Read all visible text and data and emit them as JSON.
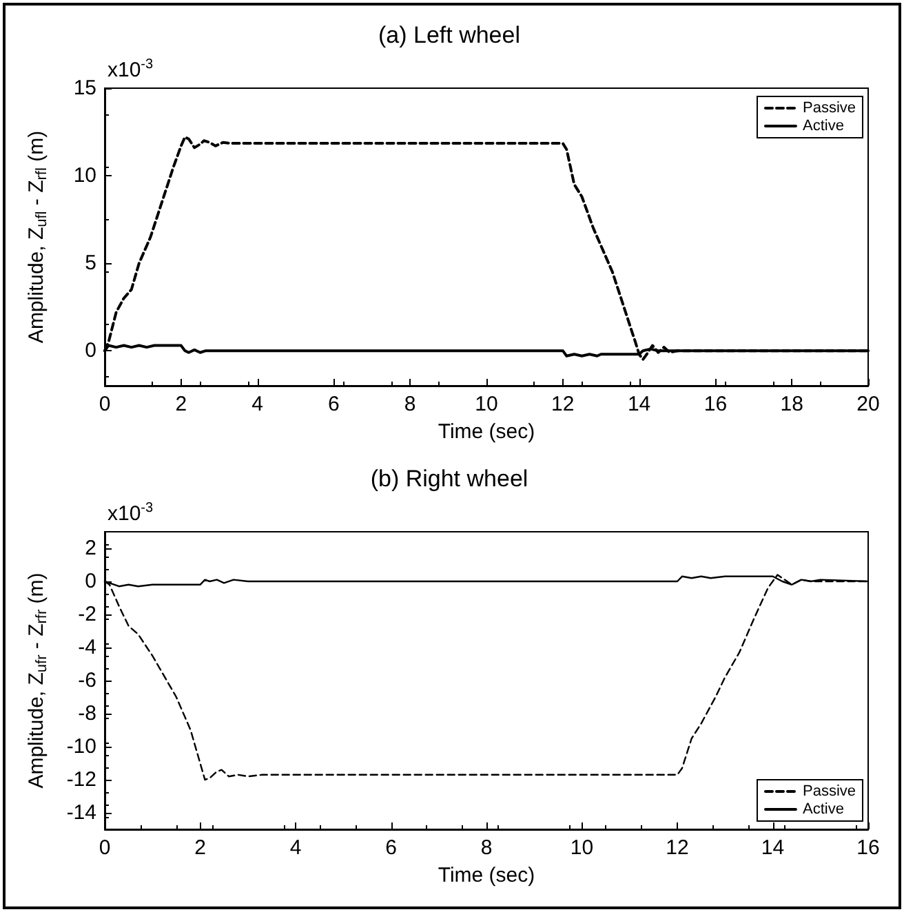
{
  "chart_data": [
    {
      "type": "line",
      "title": "(a) Left wheel",
      "xlabel": "Time (sec)",
      "ylabel": "Amplitude, Z$_{ufl}$ - Z$_{rfl}$ (m)",
      "annotations": [
        "x10$^{-3}$"
      ],
      "xlim": [
        0,
        20
      ],
      "xticks": [
        0,
        2,
        4,
        6,
        8,
        10,
        12,
        14,
        16,
        18,
        20
      ],
      "ylim": [
        -2,
        15
      ],
      "yticks": [
        0,
        5,
        10,
        15
      ],
      "grid": false,
      "legend": "top right",
      "marker": "none",
      "series": [
        {
          "name": "Passive",
          "color": "#000000",
          "line_style": "dashed",
          "x": [
            0,
            0.1,
            0.3,
            0.5,
            0.7,
            0.9,
            1.2,
            1.5,
            1.8,
            2.0,
            2.1,
            2.2,
            2.35,
            2.5,
            2.6,
            2.75,
            2.9,
            3.1,
            3.3,
            12,
            12.1,
            12.3,
            12.5,
            12.8,
            13,
            13.3,
            13.6,
            13.9,
            14.0,
            14.1,
            14.2,
            14.35,
            14.5,
            14.65,
            14.8,
            15,
            20
          ],
          "values": [
            0,
            0.5,
            2.2,
            3,
            3.5,
            5,
            6.5,
            8.5,
            10.5,
            11.7,
            12.2,
            12.1,
            11.6,
            11.8,
            12,
            11.9,
            11.7,
            11.9,
            11.85,
            11.85,
            11.5,
            9.5,
            8.8,
            7,
            6,
            4.5,
            2.5,
            0.5,
            -0.2,
            -0.5,
            -0.2,
            0.3,
            -0.1,
            0.2,
            -0.1,
            0,
            0
          ]
        },
        {
          "name": "Active",
          "color": "#000000",
          "line_style": "solid",
          "x": [
            0,
            0.1,
            0.3,
            0.5,
            0.7,
            0.9,
            1.1,
            1.3,
            2,
            2.1,
            2.2,
            2.35,
            2.5,
            2.65,
            12,
            12.1,
            12.3,
            12.5,
            12.7,
            12.9,
            13,
            14,
            14.1,
            14.3,
            14.5,
            20
          ],
          "values": [
            0,
            0.3,
            0.2,
            0.3,
            0.2,
            0.3,
            0.2,
            0.3,
            0.3,
            0,
            -0.1,
            0.05,
            -0.1,
            0,
            0,
            -0.3,
            -0.2,
            -0.3,
            -0.2,
            -0.3,
            -0.2,
            -0.2,
            0,
            0.1,
            0,
            0
          ]
        }
      ]
    },
    {
      "type": "line",
      "title": "(b) Right wheel",
      "xlabel": "Time (sec)",
      "ylabel": "Amplitude, Z$_{ufr}$ - Z$_{rfr}$ (m)",
      "annotations": [
        "x10$^{-3}$"
      ],
      "xlim": [
        0,
        16
      ],
      "xticks": [
        0,
        2,
        4,
        6,
        8,
        10,
        12,
        14,
        16
      ],
      "ylim": [
        -15,
        3
      ],
      "yticks": [
        -14,
        -12,
        -10,
        -8,
        -6,
        -4,
        -2,
        0,
        2
      ],
      "grid": false,
      "legend": "bottom right",
      "marker": "none",
      "series": [
        {
          "name": "Passive",
          "color": "#000000",
          "line_style": "dashed",
          "x": [
            0,
            0.1,
            0.3,
            0.5,
            0.7,
            1,
            1.2,
            1.5,
            1.8,
            2,
            2.1,
            2.2,
            2.35,
            2.45,
            2.6,
            2.8,
            3,
            3.3,
            4,
            12,
            12.1,
            12.3,
            12.5,
            12.8,
            13,
            13.3,
            13.6,
            13.9,
            14.1,
            14.2,
            14.4,
            14.6,
            14.8,
            15,
            16
          ],
          "values": [
            0,
            -0.2,
            -1.5,
            -2.7,
            -3.2,
            -4.5,
            -5.5,
            -7,
            -9,
            -11,
            -12,
            -11.9,
            -11.5,
            -11.4,
            -11.8,
            -11.7,
            -11.8,
            -11.7,
            -11.7,
            -11.7,
            -11.3,
            -9.5,
            -8.6,
            -7,
            -5.8,
            -4.3,
            -2.3,
            -0.4,
            0.4,
            0.2,
            -0.2,
            0.1,
            0,
            0,
            0
          ]
        },
        {
          "name": "Active",
          "color": "#000000",
          "line_style": "solid",
          "x": [
            0,
            0.1,
            0.3,
            0.5,
            0.7,
            1,
            2,
            2.1,
            2.2,
            2.35,
            2.5,
            2.7,
            3,
            12,
            12.1,
            12.3,
            12.5,
            12.7,
            13,
            14,
            14.2,
            14.4,
            14.6,
            14.8,
            15,
            16
          ],
          "values": [
            0,
            -0.1,
            -0.3,
            -0.2,
            -0.3,
            -0.2,
            -0.2,
            0.1,
            0,
            0.1,
            -0.1,
            0.1,
            0,
            0,
            0.3,
            0.2,
            0.3,
            0.2,
            0.3,
            0.3,
            0,
            -0.2,
            0.1,
            0,
            0.1,
            0
          ]
        }
      ]
    }
  ]
}
